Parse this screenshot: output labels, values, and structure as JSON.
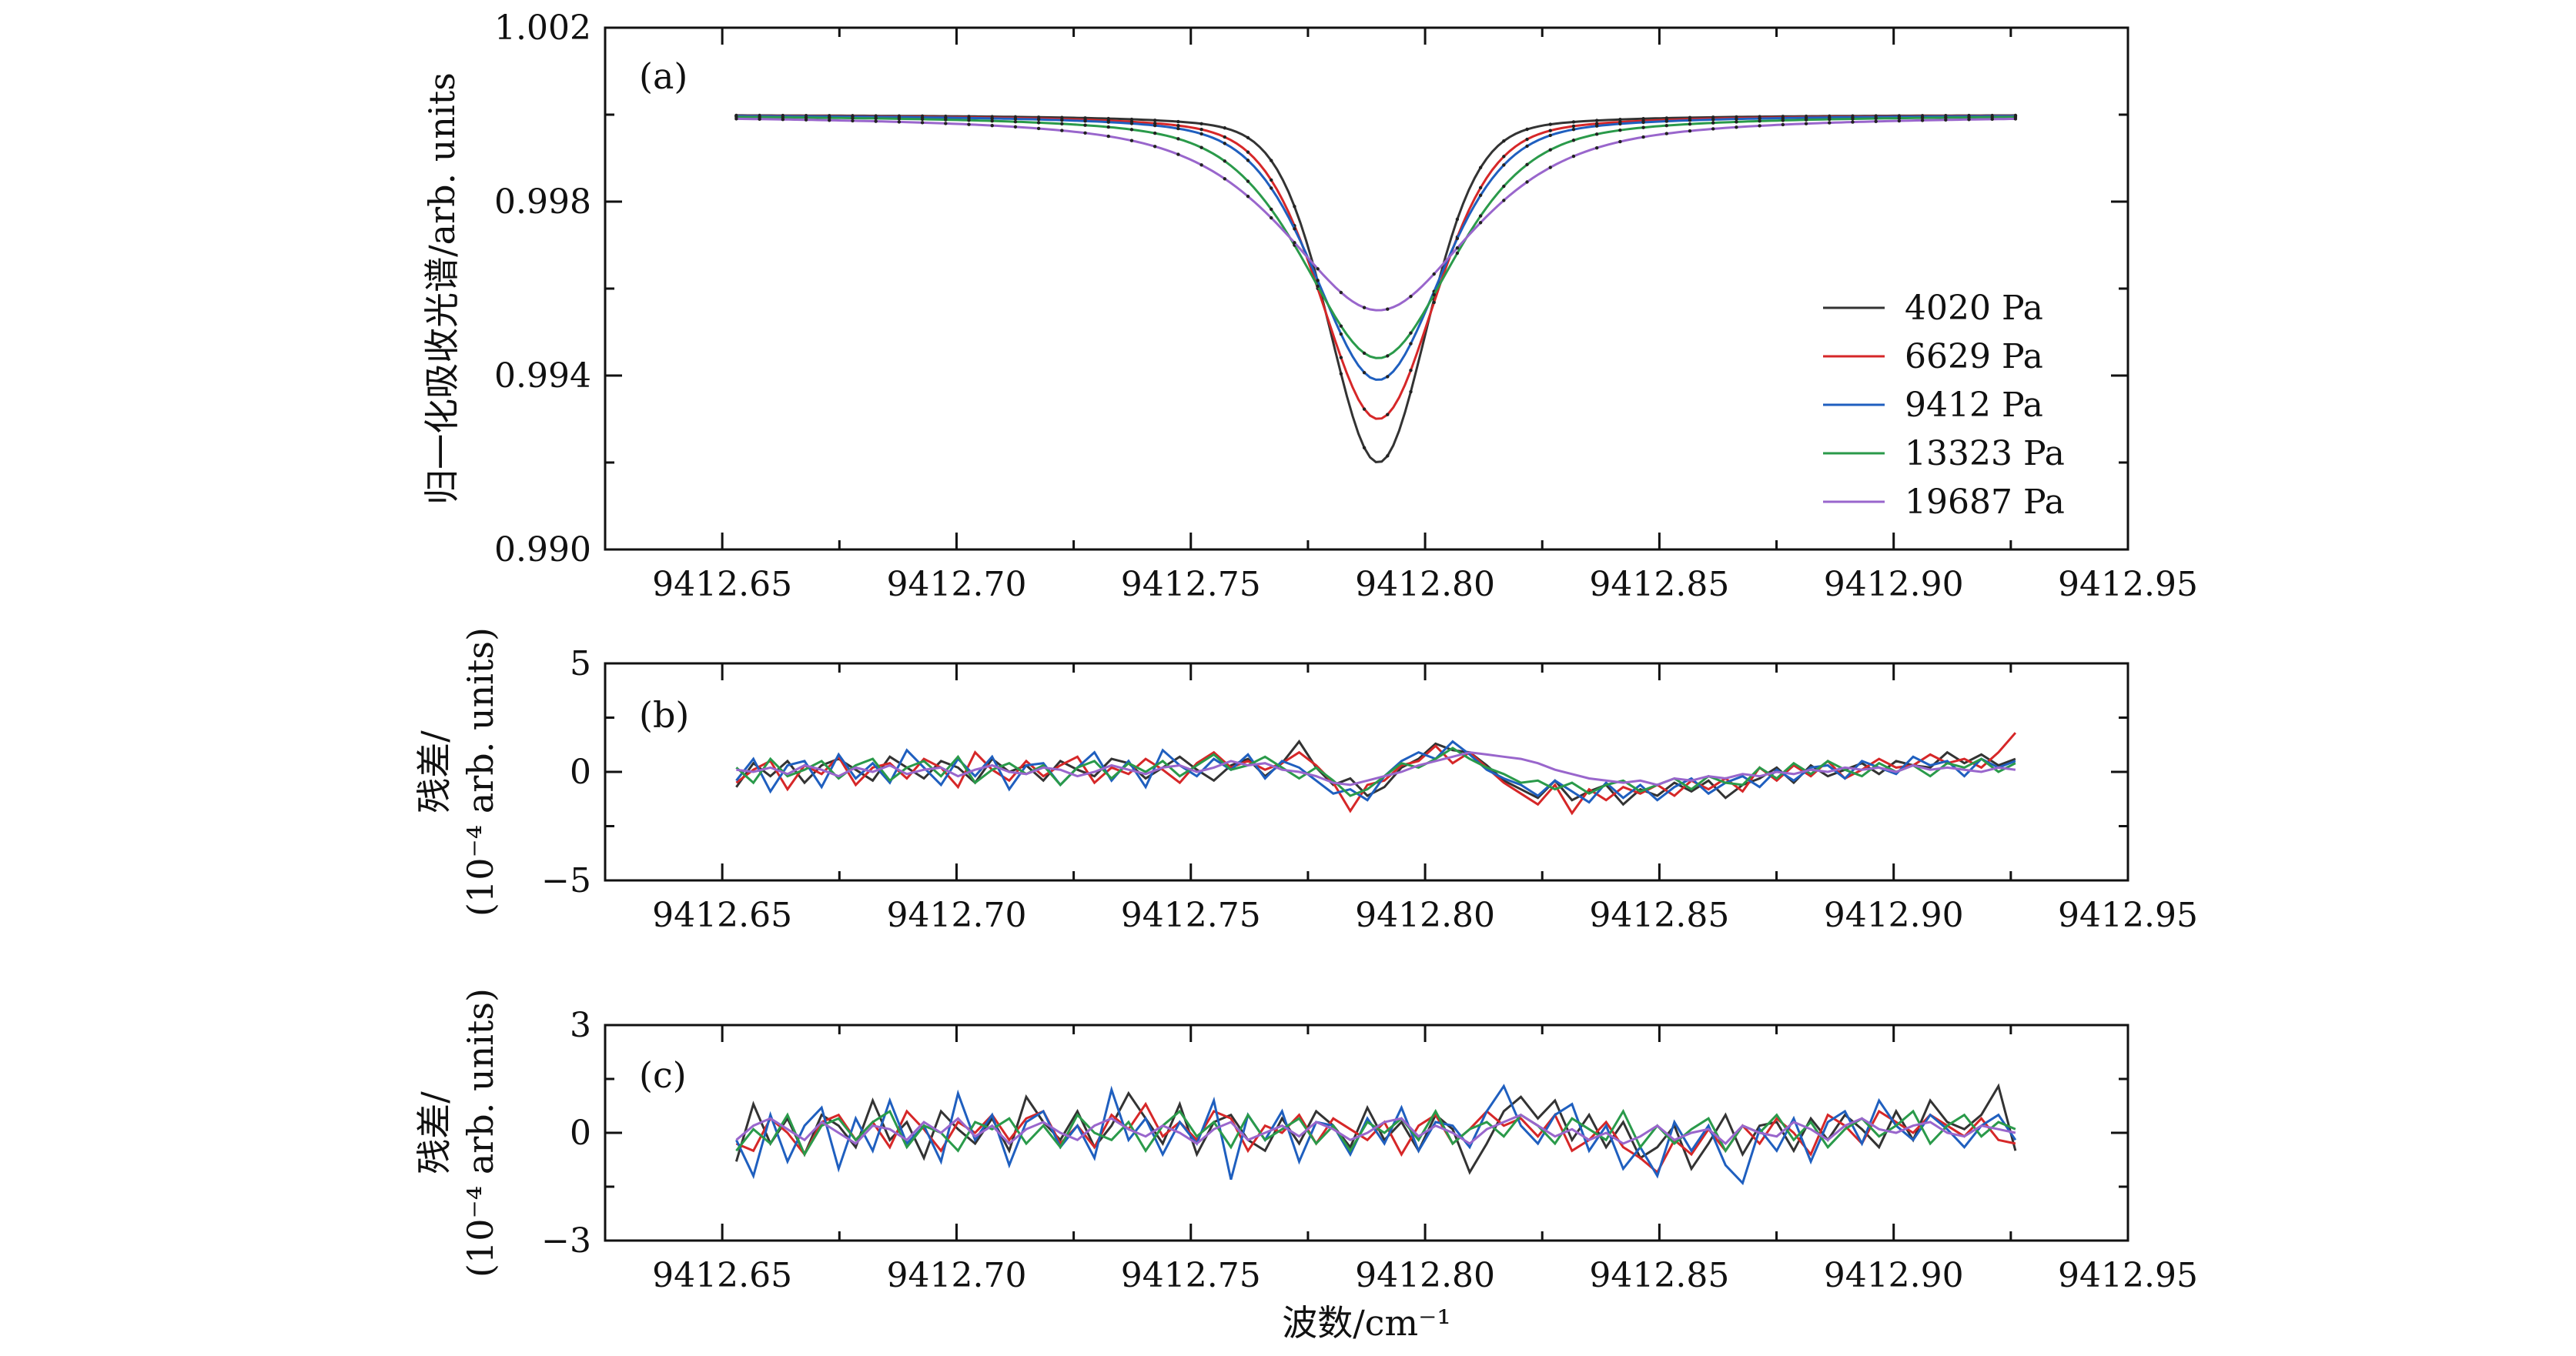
{
  "figure": {
    "xlabel": "波数/cm⁻¹"
  },
  "chart_data": [
    {
      "type": "line",
      "panel": "(a)",
      "ylabel": "归一化吸收光谱/arb. units",
      "xlim": [
        9412.625,
        9412.95
      ],
      "ylim": [
        0.99,
        1.002
      ],
      "xticks": [
        9412.65,
        9412.7,
        9412.75,
        9412.8,
        9412.85,
        9412.9,
        9412.95
      ],
      "xticklabels": [
        "9412.65",
        "9412.70",
        "9412.75",
        "9412.80",
        "9412.85",
        "9412.90",
        "9412.95"
      ],
      "yticks": [
        0.99,
        0.994,
        0.998,
        1.002
      ],
      "yticklabels": [
        "0.990",
        "0.994",
        "0.998",
        "1.002"
      ],
      "legend": "right",
      "x_range": [
        9412.653,
        9412.926
      ],
      "line_center": 9412.79,
      "baseline": 1.0,
      "series": [
        {
          "name": "4020 Pa",
          "color": "#333333",
          "minimum": 0.992,
          "hwhm": 0.0125
        },
        {
          "name": "6629 Pa",
          "color": "#d62728",
          "minimum": 0.993,
          "hwhm": 0.0145
        },
        {
          "name": "9412 Pa",
          "color": "#1f5fbf",
          "minimum": 0.9939,
          "hwhm": 0.016
        },
        {
          "name": "13323 Pa",
          "color": "#2a9a4a",
          "minimum": 0.9944,
          "hwhm": 0.019
        },
        {
          "name": "19687 Pa",
          "color": "#9966cc",
          "minimum": 0.9955,
          "hwhm": 0.024
        }
      ]
    },
    {
      "type": "line",
      "panel": "(b)",
      "ylabel_line1": "残差/",
      "ylabel_line2": "(10⁻⁴ arb. units)",
      "xlim": [
        9412.625,
        9412.95
      ],
      "ylim": [
        -5,
        5
      ],
      "xticks": [
        9412.65,
        9412.7,
        9412.75,
        9412.8,
        9412.85,
        9412.9,
        9412.95
      ],
      "xticklabels": [
        "9412.65",
        "9412.70",
        "9412.75",
        "9412.80",
        "9412.85",
        "9412.90",
        "9412.95"
      ],
      "yticks": [
        -5,
        0,
        5
      ],
      "yticklabels": [
        "−5",
        "0",
        "5"
      ],
      "series": [
        {
          "name": "4020 Pa",
          "color": "#333333",
          "values": [
            -0.7,
            0.4,
            -0.2,
            0.5,
            -0.5,
            0.3,
            0.6,
            0.1,
            -0.4,
            0.7,
            0.2,
            -0.3,
            0.5,
            0.2,
            -0.5,
            0.6,
            0.0,
            0.3,
            -0.4,
            0.5,
            0.1,
            -0.2,
            0.6,
            0.4,
            -0.3,
            0.2,
            0.7,
            0.1,
            -0.4,
            0.3,
            0.6,
            -0.2,
            0.4,
            1.4,
            0.2,
            -0.6,
            -0.3,
            -1.1,
            -0.7,
            0.2,
            0.6,
            1.3,
            1.0,
            0.9,
            0.3,
            -0.4,
            -0.8,
            -1.2,
            -0.4,
            -1.3,
            -0.9,
            -0.6,
            -1.5,
            -0.8,
            -1.1,
            -0.5,
            -0.9,
            -0.4,
            -1.2,
            -0.6,
            -0.3,
            0.2,
            -0.5,
            0.3,
            -0.2,
            0.1,
            0.4,
            -0.1,
            0.5,
            0.3,
            0.2,
            0.9,
            0.4,
            0.8,
            0.3,
            0.6
          ]
        },
        {
          "name": "6629 Pa",
          "color": "#d62728",
          "values": [
            -0.5,
            0.1,
            0.5,
            -0.8,
            0.3,
            -0.1,
            0.7,
            -0.6,
            0.2,
            0.4,
            -0.3,
            0.6,
            0.2,
            -0.7,
            0.9,
            0.1,
            -0.4,
            0.5,
            -0.2,
            0.3,
            0.7,
            -0.5,
            0.2,
            -0.1,
            0.6,
            0.1,
            -0.5,
            0.4,
            0.9,
            0.2,
            0.5,
            0.1,
            0.4,
            0.9,
            0.3,
            -0.5,
            -1.8,
            -0.6,
            -0.4,
            0.3,
            0.5,
            1.2,
            0.4,
            0.9,
            0.2,
            -0.5,
            -1.0,
            -1.5,
            -0.6,
            -1.9,
            -0.8,
            -1.3,
            -0.7,
            -1.0,
            -0.6,
            -1.1,
            -0.4,
            -0.8,
            -0.3,
            -0.9,
            0.2,
            -0.4,
            0.3,
            -0.2,
            0.5,
            -0.3,
            0.1,
            0.6,
            0.2,
            0.3,
            0.8,
            0.4,
            0.6,
            0.2,
            0.9,
            1.8
          ]
        },
        {
          "name": "9412 Pa",
          "color": "#1f5fbf",
          "values": [
            -0.4,
            0.6,
            -0.9,
            0.3,
            0.5,
            -0.7,
            0.8,
            -0.3,
            0.4,
            -0.5,
            1.0,
            0.2,
            -0.6,
            0.6,
            -0.2,
            0.7,
            -0.8,
            0.3,
            0.4,
            -0.6,
            0.2,
            0.9,
            -0.4,
            0.5,
            -0.7,
            1.0,
            0.3,
            -0.2,
            0.6,
            0.1,
            0.8,
            -0.3,
            0.5,
            0.2,
            -0.4,
            -1.0,
            -0.8,
            -1.3,
            -0.2,
            0.5,
            0.9,
            0.6,
            1.4,
            0.8,
            0.1,
            -0.3,
            -0.6,
            -1.1,
            -0.4,
            -0.9,
            -1.4,
            -0.5,
            -1.2,
            -0.6,
            -1.3,
            -0.7,
            -0.3,
            -1.0,
            -0.5,
            -0.2,
            -0.7,
            0.1,
            -0.4,
            0.2,
            0.3,
            -0.3,
            0.5,
            0.2,
            -0.1,
            0.7,
            0.3,
            0.5,
            -0.2,
            0.6,
            0.2,
            0.5
          ]
        },
        {
          "name": "13323 Pa",
          "color": "#2a9a4a",
          "values": [
            0.2,
            -0.5,
            0.6,
            -0.2,
            0.1,
            0.5,
            -0.3,
            0.3,
            0.6,
            -0.4,
            0.2,
            0.5,
            -0.2,
            0.7,
            -0.5,
            0.1,
            0.4,
            -0.1,
            0.3,
            -0.6,
            0.2,
            0.5,
            -0.3,
            0.4,
            0.0,
            0.5,
            -0.2,
            0.3,
            0.8,
            0.1,
            0.3,
            0.7,
            0.2,
            -0.3,
            0.2,
            -0.4,
            -1.1,
            -0.8,
            -0.2,
            0.4,
            0.2,
            0.6,
            1.1,
            0.6,
            0.2,
            -0.1,
            -0.5,
            -0.4,
            -0.8,
            -0.5,
            -1.0,
            -0.6,
            -0.4,
            -0.9,
            -0.6,
            -0.3,
            -0.8,
            -0.2,
            -0.5,
            -0.6,
            0.2,
            -0.3,
            0.4,
            -0.1,
            0.5,
            0.1,
            -0.2,
            0.4,
            0.0,
            0.3,
            -0.2,
            0.4,
            0.2,
            0.6,
            0.0,
            0.4
          ]
        },
        {
          "name": "19687 Pa",
          "color": "#9966cc",
          "values": [
            0.1,
            0.0,
            0.2,
            -0.1,
            0.3,
            0.1,
            -0.2,
            0.2,
            0.0,
            0.3,
            -0.1,
            0.1,
            0.2,
            -0.2,
            0.1,
            0.3,
            0.0,
            -0.1,
            0.2,
            0.1,
            -0.2,
            0.0,
            0.3,
            0.1,
            -0.1,
            0.2,
            0.3,
            0.0,
            0.2,
            0.5,
            0.3,
            0.4,
            0.1,
            0.0,
            -0.2,
            -0.5,
            -0.6,
            -0.4,
            -0.2,
            0.0,
            0.3,
            0.5,
            0.7,
            0.9,
            0.8,
            0.7,
            0.6,
            0.4,
            0.1,
            -0.1,
            -0.3,
            -0.4,
            -0.5,
            -0.4,
            -0.6,
            -0.3,
            -0.4,
            -0.2,
            -0.3,
            -0.1,
            -0.2,
            0.0,
            -0.1,
            0.1,
            0.0,
            0.2,
            0.1,
            0.2,
            0.0,
            0.3,
            0.1,
            0.2,
            0.1,
            0.0,
            0.2,
            0.1
          ]
        }
      ]
    },
    {
      "type": "line",
      "panel": "(c)",
      "ylabel_line1": "残差/",
      "ylabel_line2": "(10⁻⁴ arb. units)",
      "xlim": [
        9412.625,
        9412.95
      ],
      "ylim": [
        -3,
        3
      ],
      "xticks": [
        9412.65,
        9412.7,
        9412.75,
        9412.8,
        9412.85,
        9412.9,
        9412.95
      ],
      "xticklabels": [
        "9412.65",
        "9412.70",
        "9412.75",
        "9412.80",
        "9412.85",
        "9412.90",
        "9412.95"
      ],
      "yticks": [
        -3,
        0,
        3
      ],
      "yticklabels": [
        "−3",
        "0",
        "3"
      ],
      "series": [
        {
          "name": "4020 Pa",
          "color": "#333333",
          "values": [
            -0.8,
            0.8,
            -0.3,
            0.4,
            -0.6,
            0.5,
            0.2,
            -0.4,
            0.9,
            -0.2,
            0.3,
            -0.7,
            0.6,
            0.1,
            -0.3,
            0.4,
            -0.5,
            1.0,
            0.3,
            -0.2,
            0.6,
            -0.4,
            0.2,
            1.1,
            0.4,
            -0.3,
            0.8,
            -0.6,
            0.3,
            0.5,
            -0.2,
            -0.5,
            0.4,
            -0.3,
            0.6,
            0.2,
            -0.4,
            0.7,
            -0.2,
            0.3,
            -0.5,
            0.5,
            0.1,
            -1.1,
            -0.3,
            0.6,
            1.0,
            0.4,
            0.9,
            -0.2,
            0.5,
            -0.4,
            0.3,
            -0.7,
            -0.4,
            0.2,
            -1.0,
            -0.3,
            0.5,
            -0.6,
            0.2,
            0.3,
            -0.5,
            0.4,
            -0.2,
            0.5,
            0.1,
            -0.4,
            0.6,
            -0.2,
            0.9,
            0.3,
            0.1,
            0.5,
            1.3,
            -0.5
          ]
        },
        {
          "name": "6629 Pa",
          "color": "#d62728",
          "values": [
            -0.3,
            -0.5,
            0.4,
            0.0,
            -0.6,
            0.3,
            0.5,
            -0.2,
            0.3,
            -0.4,
            0.6,
            0.1,
            -0.5,
            0.3,
            0.0,
            0.5,
            -0.2,
            0.4,
            0.6,
            -0.3,
            0.2,
            -0.4,
            0.5,
            0.1,
            0.8,
            -0.1,
            0.3,
            -0.2,
            0.6,
            0.4,
            -0.5,
            0.2,
            0.0,
            0.5,
            -0.3,
            0.4,
            0.1,
            -0.2,
            0.3,
            -0.6,
            0.2,
            0.5,
            -0.3,
            0.1,
            0.6,
            0.2,
            0.4,
            -0.1,
            0.5,
            -0.5,
            -0.2,
            0.3,
            -0.4,
            -0.7,
            -1.1,
            -0.2,
            -0.6,
            0.1,
            -0.5,
            0.2,
            -0.3,
            0.4,
            0.0,
            -0.6,
            0.5,
            0.2,
            -0.3,
            0.6,
            0.3,
            0.0,
            0.5,
            0.2,
            -0.1,
            0.4,
            -0.2,
            -0.3
          ]
        },
        {
          "name": "9412 Pa",
          "color": "#1f5fbf",
          "values": [
            -0.2,
            -1.2,
            0.5,
            -0.8,
            0.2,
            0.7,
            -1.0,
            0.4,
            -0.5,
            0.9,
            -0.3,
            0.2,
            -0.8,
            1.1,
            -0.2,
            0.5,
            -0.9,
            0.3,
            0.6,
            -0.4,
            0.2,
            -0.7,
            1.2,
            -0.2,
            0.4,
            -0.6,
            0.3,
            -0.3,
            0.9,
            -1.3,
            0.5,
            -0.2,
            0.6,
            -0.8,
            0.3,
            0.2,
            -0.6,
            0.4,
            -0.3,
            0.7,
            -0.5,
            0.3,
            0.2,
            -0.4,
            0.6,
            1.3,
            0.2,
            -0.3,
            0.5,
            0.8,
            -0.5,
            0.2,
            -1.0,
            -0.4,
            -1.2,
            0.3,
            -0.5,
            0.2,
            -0.9,
            -1.4,
            0.1,
            -0.5,
            0.4,
            -0.8,
            0.3,
            0.6,
            -0.3,
            0.9,
            0.2,
            -0.2,
            0.5,
            0.1,
            -0.4,
            0.2,
            0.5,
            -0.2
          ]
        },
        {
          "name": "13323 Pa",
          "color": "#2a9a4a",
          "values": [
            -0.5,
            0.1,
            -0.3,
            0.5,
            -0.6,
            0.2,
            0.4,
            -0.2,
            0.3,
            0.6,
            -0.4,
            0.2,
            0.0,
            -0.5,
            0.3,
            0.1,
            0.4,
            -0.3,
            0.2,
            -0.4,
            0.5,
            0.0,
            -0.2,
            0.3,
            -0.5,
            0.2,
            0.6,
            -0.1,
            0.3,
            -0.4,
            0.5,
            -0.2,
            0.1,
            0.4,
            -0.3,
            0.2,
            -0.5,
            0.3,
            0.0,
            0.4,
            -0.2,
            0.6,
            -0.3,
            0.1,
            0.3,
            -0.1,
            0.5,
            0.2,
            -0.3,
            0.4,
            0.1,
            -0.2,
            0.6,
            -0.4,
            0.2,
            -0.3,
            0.1,
            0.4,
            -0.5,
            0.2,
            0.0,
            0.5,
            -0.2,
            0.3,
            -0.4,
            0.1,
            0.4,
            -0.1,
            0.2,
            0.6,
            -0.3,
            0.2,
            0.5,
            -0.1,
            0.3,
            0.1
          ]
        },
        {
          "name": "19687 Pa",
          "color": "#9966cc",
          "values": [
            -0.2,
            0.2,
            0.4,
            0.1,
            -0.2,
            0.3,
            0.0,
            -0.3,
            0.2,
            0.1,
            -0.2,
            0.3,
            0.0,
            0.4,
            -0.1,
            0.2,
            -0.3,
            0.1,
            0.3,
            0.0,
            -0.2,
            0.2,
            0.4,
            0.1,
            -0.1,
            0.2,
            0.0,
            -0.3,
            0.1,
            0.3,
            -0.2,
            0.0,
            0.2,
            -0.1,
            0.3,
            0.1,
            -0.2,
            0.0,
            0.3,
            0.4,
            -0.1,
            0.2,
            0.0,
            -0.3,
            0.1,
            0.3,
            0.5,
            0.2,
            -0.1,
            0.1,
            -0.2,
            0.0,
            -0.3,
            -0.1,
            0.2,
            -0.2,
            0.0,
            0.1,
            -0.3,
            0.2,
            0.0,
            -0.1,
            0.3,
            0.1,
            -0.2,
            0.2,
            0.4,
            0.1,
            0.0,
            0.2,
            0.3,
            0.0,
            -0.1,
            0.2,
            0.1,
            0.0
          ]
        }
      ]
    }
  ]
}
